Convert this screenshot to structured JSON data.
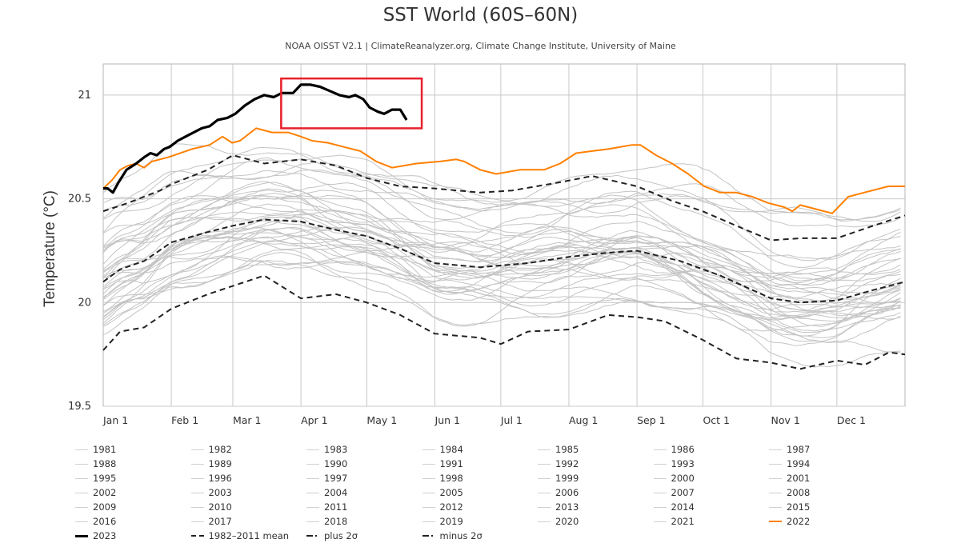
{
  "title": "SST World (60S–60N)",
  "subtitle": "NOAA OISST V2.1 | ClimateReanalyzer.org, Climate Change Institute, University of Maine",
  "highlight_box": {
    "color": "#e8202a",
    "day_range": [
      81,
      145
    ],
    "value_range": [
      20.84,
      21.08
    ]
  },
  "chart_data": {
    "type": "line",
    "title": "SST World (60S–60N)",
    "subtitle": "NOAA OISST V2.1 | ClimateReanalyzer.org, Climate Change Institute, University of Maine",
    "xlabel": "",
    "ylabel": "Temperature (°C)",
    "xlim": [
      0,
      365
    ],
    "ylim": [
      19.5,
      21.15
    ],
    "grid": true,
    "legend_position": "bottom",
    "x_ticks": [
      {
        "day": 0,
        "label": "Jan 1"
      },
      {
        "day": 31,
        "label": "Feb 1"
      },
      {
        "day": 59,
        "label": "Mar 1"
      },
      {
        "day": 90,
        "label": "Apr 1"
      },
      {
        "day": 120,
        "label": "May 1"
      },
      {
        "day": 151,
        "label": "Jun 1"
      },
      {
        "day": 181,
        "label": "Jul 1"
      },
      {
        "day": 212,
        "label": "Aug 1"
      },
      {
        "day": 243,
        "label": "Sep 1"
      },
      {
        "day": 273,
        "label": "Oct 1"
      },
      {
        "day": 304,
        "label": "Nov 1"
      },
      {
        "day": 334,
        "label": "Dec 1"
      }
    ],
    "y_ticks": [
      {
        "value": 19.5,
        "label": "19.5"
      },
      {
        "value": 20,
        "label": "20"
      },
      {
        "value": 20.5,
        "label": "20.5"
      },
      {
        "value": 21,
        "label": "21"
      }
    ],
    "colors": {
      "background_years": "#c4c4c4",
      "y2023": "#000000",
      "y2022": "#ff8000",
      "climatology": "#222222",
      "grid": "#c8c8c8"
    },
    "series_2023": {
      "name": "2023",
      "points": [
        [
          0,
          20.55
        ],
        [
          2,
          20.55
        ],
        [
          4.4,
          20.53
        ],
        [
          7,
          20.58
        ],
        [
          10.6,
          20.64
        ],
        [
          15,
          20.67
        ],
        [
          18.6,
          20.7
        ],
        [
          21.5,
          20.72
        ],
        [
          24.4,
          20.71
        ],
        [
          27.7,
          20.74
        ],
        [
          30.2,
          20.75
        ],
        [
          33.9,
          20.78
        ],
        [
          37.5,
          20.8
        ],
        [
          41.2,
          20.82
        ],
        [
          44.8,
          20.84
        ],
        [
          48.5,
          20.85
        ],
        [
          52.1,
          20.88
        ],
        [
          56.5,
          20.89
        ],
        [
          60.1,
          20.91
        ],
        [
          64.5,
          20.95
        ],
        [
          68.9,
          20.98
        ],
        [
          73.3,
          21.0
        ],
        [
          77.6,
          20.99
        ],
        [
          81.3,
          21.01
        ],
        [
          86.4,
          21.01
        ],
        [
          90,
          21.05
        ],
        [
          94.4,
          21.05
        ],
        [
          98.7,
          21.04
        ],
        [
          103.1,
          21.02
        ],
        [
          107.5,
          21.0
        ],
        [
          111.9,
          20.99
        ],
        [
          114.8,
          21.0
        ],
        [
          118.4,
          20.98
        ],
        [
          121.3,
          20.94
        ],
        [
          125,
          20.92
        ],
        [
          127.9,
          20.91
        ],
        [
          131.5,
          20.93
        ],
        [
          135.2,
          20.93
        ],
        [
          138.1,
          20.88
        ]
      ]
    },
    "series_2022": {
      "name": "2022",
      "points": [
        [
          0,
          20.55
        ],
        [
          4,
          20.59
        ],
        [
          7.7,
          20.64
        ],
        [
          11.3,
          20.66
        ],
        [
          15,
          20.67
        ],
        [
          18.6,
          20.65
        ],
        [
          22.2,
          20.68
        ],
        [
          29.5,
          20.7
        ],
        [
          40.4,
          20.74
        ],
        [
          48.5,
          20.76
        ],
        [
          54.3,
          20.8
        ],
        [
          58.7,
          20.77
        ],
        [
          62.3,
          20.78
        ],
        [
          69.6,
          20.84
        ],
        [
          76.9,
          20.82
        ],
        [
          84.2,
          20.82
        ],
        [
          90,
          20.8
        ],
        [
          95.1,
          20.78
        ],
        [
          102.4,
          20.77
        ],
        [
          109.7,
          20.75
        ],
        [
          117,
          20.73
        ],
        [
          124.3,
          20.68
        ],
        [
          131.5,
          20.65
        ],
        [
          142.5,
          20.67
        ],
        [
          153.4,
          20.68
        ],
        [
          160.7,
          20.69
        ],
        [
          164.3,
          20.68
        ],
        [
          171.6,
          20.64
        ],
        [
          178.9,
          20.62
        ],
        [
          189.8,
          20.64
        ],
        [
          200.7,
          20.64
        ],
        [
          208,
          20.67
        ],
        [
          215.3,
          20.72
        ],
        [
          222.6,
          20.73
        ],
        [
          229.9,
          20.74
        ],
        [
          240.8,
          20.76
        ],
        [
          244.5,
          20.76
        ],
        [
          251.7,
          20.71
        ],
        [
          259,
          20.67
        ],
        [
          266.3,
          20.62
        ],
        [
          273.6,
          20.56
        ],
        [
          280.9,
          20.53
        ],
        [
          288.2,
          20.53
        ],
        [
          295.5,
          20.51
        ],
        [
          302.7,
          20.48
        ],
        [
          310,
          20.46
        ],
        [
          313.7,
          20.44
        ],
        [
          317.3,
          20.47
        ],
        [
          324.6,
          20.45
        ],
        [
          331.9,
          20.43
        ],
        [
          339.2,
          20.51
        ],
        [
          346.4,
          20.53
        ],
        [
          357.4,
          20.56
        ],
        [
          365,
          20.56
        ]
      ]
    },
    "series_mean": {
      "name": "1982-2011 mean",
      "points": [
        [
          0,
          20.1
        ],
        [
          7.7,
          20.16
        ],
        [
          18.6,
          20.2
        ],
        [
          31,
          20.29
        ],
        [
          47.7,
          20.34
        ],
        [
          59,
          20.37
        ],
        [
          73.3,
          20.4
        ],
        [
          90,
          20.39
        ],
        [
          106,
          20.35
        ],
        [
          120,
          20.32
        ],
        [
          135.2,
          20.26
        ],
        [
          150.8,
          20.19
        ],
        [
          171.6,
          20.17
        ],
        [
          193.4,
          20.19
        ],
        [
          212,
          20.22
        ],
        [
          229.9,
          20.24
        ],
        [
          243,
          20.25
        ],
        [
          262.7,
          20.2
        ],
        [
          280.9,
          20.13
        ],
        [
          304,
          20.02
        ],
        [
          317.3,
          20.0
        ],
        [
          334,
          20.01
        ],
        [
          350.5,
          20.06
        ],
        [
          365,
          20.1
        ]
      ]
    },
    "series_plus2sigma": {
      "name": "plus 2σ",
      "points": [
        [
          0,
          20.44
        ],
        [
          11.3,
          20.48
        ],
        [
          25.9,
          20.54
        ],
        [
          31,
          20.57
        ],
        [
          47.7,
          20.64
        ],
        [
          59,
          20.71
        ],
        [
          73.3,
          20.67
        ],
        [
          90,
          20.69
        ],
        [
          106,
          20.66
        ],
        [
          120,
          20.6
        ],
        [
          135.2,
          20.56
        ],
        [
          150.8,
          20.55
        ],
        [
          171.6,
          20.53
        ],
        [
          186.2,
          20.54
        ],
        [
          208,
          20.58
        ],
        [
          222.6,
          20.61
        ],
        [
          243,
          20.56
        ],
        [
          259,
          20.49
        ],
        [
          272.9,
          20.44
        ],
        [
          288.2,
          20.37
        ],
        [
          304,
          20.3
        ],
        [
          317.3,
          20.31
        ],
        [
          334,
          20.31
        ],
        [
          350.5,
          20.37
        ],
        [
          365,
          20.42
        ]
      ]
    },
    "series_minus2sigma": {
      "name": "minus 2σ",
      "points": [
        [
          0,
          19.77
        ],
        [
          7.7,
          19.86
        ],
        [
          18.6,
          19.88
        ],
        [
          31,
          19.97
        ],
        [
          47.7,
          20.04
        ],
        [
          73.3,
          20.13
        ],
        [
          90,
          20.02
        ],
        [
          106,
          20.04
        ],
        [
          120,
          20.0
        ],
        [
          135.2,
          19.94
        ],
        [
          150.8,
          19.85
        ],
        [
          171.6,
          19.83
        ],
        [
          181,
          19.8
        ],
        [
          193.4,
          19.86
        ],
        [
          212,
          19.87
        ],
        [
          229.9,
          19.94
        ],
        [
          243,
          19.93
        ],
        [
          255.5,
          19.91
        ],
        [
          272.9,
          19.82
        ],
        [
          288.2,
          19.73
        ],
        [
          304,
          19.71
        ],
        [
          317.3,
          19.68
        ],
        [
          334,
          19.72
        ],
        [
          346.8,
          19.7
        ],
        [
          357.7,
          19.76
        ],
        [
          365,
          19.75
        ]
      ]
    },
    "background_years": [
      {
        "year": 1981,
        "offset": -0.22,
        "seed": 11
      },
      {
        "year": 1982,
        "offset": -0.18,
        "seed": 12
      },
      {
        "year": 1983,
        "offset": -0.05,
        "seed": 13
      },
      {
        "year": 1984,
        "offset": -0.16,
        "seed": 14
      },
      {
        "year": 1985,
        "offset": -0.2,
        "seed": 15
      },
      {
        "year": 1986,
        "offset": -0.12,
        "seed": 16
      },
      {
        "year": 1987,
        "offset": 0.02,
        "seed": 17
      },
      {
        "year": 1988,
        "offset": -0.02,
        "seed": 18
      },
      {
        "year": 1989,
        "offset": -0.14,
        "seed": 19
      },
      {
        "year": 1990,
        "offset": -0.04,
        "seed": 20
      },
      {
        "year": 1991,
        "offset": -0.06,
        "seed": 21
      },
      {
        "year": 1992,
        "offset": -0.12,
        "seed": 22
      },
      {
        "year": 1993,
        "offset": -0.09,
        "seed": 23
      },
      {
        "year": 1994,
        "offset": -0.08,
        "seed": 24
      },
      {
        "year": 1995,
        "offset": -0.03,
        "seed": 25
      },
      {
        "year": 1996,
        "offset": -0.1,
        "seed": 26
      },
      {
        "year": 1997,
        "offset": 0.06,
        "seed": 27
      },
      {
        "year": 1998,
        "offset": 0.1,
        "seed": 28
      },
      {
        "year": 1999,
        "offset": -0.07,
        "seed": 29
      },
      {
        "year": 2000,
        "offset": -0.08,
        "seed": 30
      },
      {
        "year": 2001,
        "offset": 0.02,
        "seed": 31
      },
      {
        "year": 2002,
        "offset": 0.05,
        "seed": 32
      },
      {
        "year": 2003,
        "offset": 0.07,
        "seed": 33
      },
      {
        "year": 2004,
        "offset": 0.05,
        "seed": 34
      },
      {
        "year": 2005,
        "offset": 0.07,
        "seed": 35
      },
      {
        "year": 2006,
        "offset": 0.05,
        "seed": 36
      },
      {
        "year": 2007,
        "offset": 0.01,
        "seed": 37
      },
      {
        "year": 2008,
        "offset": -0.03,
        "seed": 38
      },
      {
        "year": 2009,
        "offset": 0.08,
        "seed": 39
      },
      {
        "year": 2010,
        "offset": 0.1,
        "seed": 40
      },
      {
        "year": 2011,
        "offset": -0.02,
        "seed": 41
      },
      {
        "year": 2012,
        "offset": 0.06,
        "seed": 42
      },
      {
        "year": 2013,
        "offset": 0.1,
        "seed": 43
      },
      {
        "year": 2014,
        "offset": 0.18,
        "seed": 44
      },
      {
        "year": 2015,
        "offset": 0.28,
        "seed": 45
      },
      {
        "year": 2016,
        "offset": 0.34,
        "seed": 46
      },
      {
        "year": 2017,
        "offset": 0.25,
        "seed": 47
      },
      {
        "year": 2018,
        "offset": 0.22,
        "seed": 48
      },
      {
        "year": 2019,
        "offset": 0.3,
        "seed": 49
      },
      {
        "year": 2020,
        "offset": 0.36,
        "seed": 50
      },
      {
        "year": 2021,
        "offset": 0.28,
        "seed": 51
      }
    ]
  },
  "legend": {
    "columns": 7,
    "items": [
      {
        "label": "1981",
        "style": "gray"
      },
      {
        "label": "1982",
        "style": "gray"
      },
      {
        "label": "1983",
        "style": "gray"
      },
      {
        "label": "1984",
        "style": "gray"
      },
      {
        "label": "1985",
        "style": "gray"
      },
      {
        "label": "1986",
        "style": "gray"
      },
      {
        "label": "1987",
        "style": "gray"
      },
      {
        "label": "1988",
        "style": "gray"
      },
      {
        "label": "1989",
        "style": "gray"
      },
      {
        "label": "1990",
        "style": "gray"
      },
      {
        "label": "1991",
        "style": "gray"
      },
      {
        "label": "1992",
        "style": "gray"
      },
      {
        "label": "1993",
        "style": "gray"
      },
      {
        "label": "1994",
        "style": "gray"
      },
      {
        "label": "1995",
        "style": "gray"
      },
      {
        "label": "1996",
        "style": "gray"
      },
      {
        "label": "1997",
        "style": "gray"
      },
      {
        "label": "1998",
        "style": "gray"
      },
      {
        "label": "1999",
        "style": "gray"
      },
      {
        "label": "2000",
        "style": "gray"
      },
      {
        "label": "2001",
        "style": "gray"
      },
      {
        "label": "2002",
        "style": "gray"
      },
      {
        "label": "2003",
        "style": "gray"
      },
      {
        "label": "2004",
        "style": "gray"
      },
      {
        "label": "2005",
        "style": "gray"
      },
      {
        "label": "2006",
        "style": "gray"
      },
      {
        "label": "2007",
        "style": "gray"
      },
      {
        "label": "2008",
        "style": "gray"
      },
      {
        "label": "2009",
        "style": "gray"
      },
      {
        "label": "2010",
        "style": "gray"
      },
      {
        "label": "2011",
        "style": "gray"
      },
      {
        "label": "2012",
        "style": "gray"
      },
      {
        "label": "2013",
        "style": "gray"
      },
      {
        "label": "2014",
        "style": "gray"
      },
      {
        "label": "2015",
        "style": "gray"
      },
      {
        "label": "2016",
        "style": "gray"
      },
      {
        "label": "2017",
        "style": "gray"
      },
      {
        "label": "2018",
        "style": "gray"
      },
      {
        "label": "2019",
        "style": "gray"
      },
      {
        "label": "2020",
        "style": "gray"
      },
      {
        "label": "2021",
        "style": "gray"
      },
      {
        "label": "2022",
        "style": "y2022"
      },
      {
        "label": "2023",
        "style": "y2023"
      },
      {
        "label": "1982–2011 mean",
        "style": "mean"
      },
      {
        "label": "plus 2σ",
        "style": "dashdot"
      },
      {
        "label": "minus 2σ",
        "style": "dashdot"
      }
    ]
  }
}
